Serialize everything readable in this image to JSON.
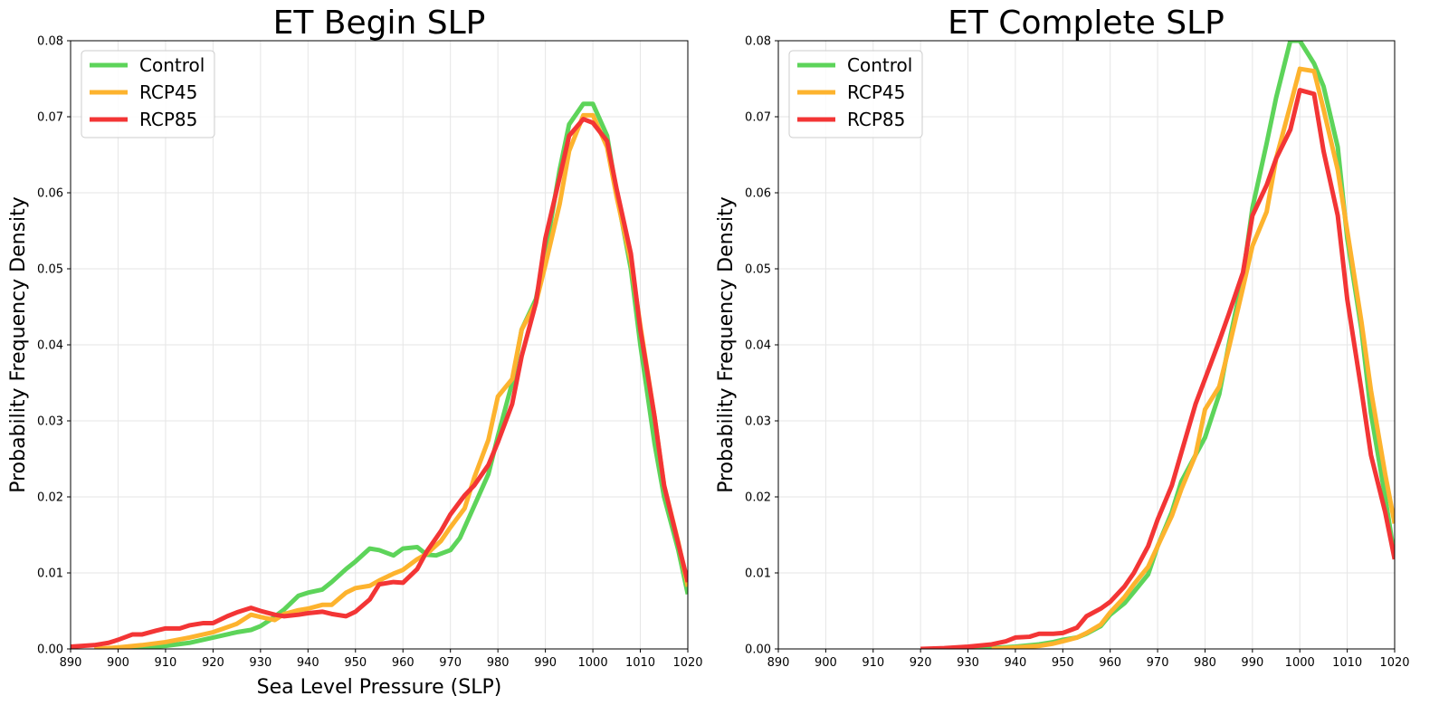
{
  "chart_data": [
    {
      "type": "line",
      "title": "ET Begin SLP",
      "xlabel": "Sea Level Pressure (SLP)",
      "ylabel": "Probability Frequency Density",
      "xlim": [
        890,
        1020
      ],
      "ylim": [
        0,
        0.08
      ],
      "xticks": [
        "890",
        "900",
        "910",
        "920",
        "930",
        "940",
        "950",
        "960",
        "970",
        "980",
        "990",
        "1000",
        "1010",
        "1020"
      ],
      "yticks": [
        "0.00",
        "0.01",
        "0.02",
        "0.03",
        "0.04",
        "0.05",
        "0.06",
        "0.07",
        "0.08"
      ],
      "grid": true,
      "legend_position": "top-left",
      "series": [
        {
          "name": "Control",
          "color": "#5dd45a",
          "x": [
            900,
            905,
            910,
            915,
            920,
            925,
            928,
            930,
            932,
            935,
            938,
            940,
            943,
            945,
            948,
            950,
            953,
            955,
            958,
            960,
            963,
            965,
            967,
            970,
            972,
            975,
            978,
            980,
            983,
            985,
            988,
            990,
            993,
            995,
            998,
            1000,
            1003,
            1005,
            1008,
            1010,
            1013,
            1015,
            1018,
            1020
          ],
          "y": [
            0,
            0.0002,
            0.0004,
            0.0008,
            0.0015,
            0.0022,
            0.0025,
            0.003,
            0.0038,
            0.0052,
            0.007,
            0.0074,
            0.0078,
            0.0088,
            0.0105,
            0.0115,
            0.0132,
            0.013,
            0.0123,
            0.0132,
            0.0134,
            0.0124,
            0.0123,
            0.013,
            0.0146,
            0.0188,
            0.023,
            0.028,
            0.035,
            0.042,
            0.046,
            0.052,
            0.063,
            0.069,
            0.0717,
            0.0717,
            0.0675,
            0.06,
            0.05,
            0.04,
            0.027,
            0.02,
            0.013,
            0.0072
          ]
        },
        {
          "name": "RCP45",
          "color": "#fdb32e",
          "x": [
            895,
            900,
            905,
            910,
            915,
            920,
            925,
            928,
            930,
            933,
            935,
            938,
            940,
            943,
            945,
            948,
            950,
            953,
            955,
            958,
            960,
            963,
            965,
            968,
            970,
            973,
            975,
            978,
            980,
            983,
            985,
            988,
            990,
            993,
            995,
            998,
            1000,
            1003,
            1005,
            1008,
            1010,
            1013,
            1015,
            1018,
            1020
          ],
          "y": [
            0,
            0.0002,
            0.0005,
            0.0009,
            0.0015,
            0.0022,
            0.0033,
            0.0045,
            0.0042,
            0.0038,
            0.0046,
            0.0051,
            0.0053,
            0.0058,
            0.0058,
            0.0074,
            0.008,
            0.0083,
            0.009,
            0.0099,
            0.0104,
            0.0118,
            0.0125,
            0.0142,
            0.016,
            0.0185,
            0.0225,
            0.0275,
            0.0332,
            0.0355,
            0.042,
            0.0455,
            0.0505,
            0.0585,
            0.0655,
            0.0702,
            0.0702,
            0.066,
            0.0595,
            0.051,
            0.0425,
            0.0305,
            0.0215,
            0.014,
            0.0082
          ]
        },
        {
          "name": "RCP85",
          "color": "#f33535",
          "x": [
            890,
            895,
            898,
            900,
            903,
            905,
            908,
            910,
            913,
            915,
            918,
            920,
            923,
            925,
            928,
            930,
            933,
            935,
            938,
            940,
            943,
            945,
            948,
            950,
            953,
            955,
            958,
            960,
            963,
            965,
            968,
            970,
            973,
            975,
            978,
            980,
            983,
            985,
            988,
            990,
            993,
            995,
            998,
            1000,
            1003,
            1005,
            1008,
            1010,
            1013,
            1015,
            1018,
            1020
          ],
          "y": [
            0.0003,
            0.0005,
            0.0008,
            0.0012,
            0.0019,
            0.0019,
            0.0024,
            0.0027,
            0.0027,
            0.0031,
            0.0034,
            0.0034,
            0.0043,
            0.0048,
            0.0054,
            0.005,
            0.0045,
            0.0043,
            0.0045,
            0.0047,
            0.0049,
            0.0046,
            0.0043,
            0.0049,
            0.0065,
            0.0085,
            0.0088,
            0.0087,
            0.0105,
            0.0128,
            0.0155,
            0.0177,
            0.0202,
            0.0215,
            0.0242,
            0.0272,
            0.0322,
            0.0385,
            0.0455,
            0.054,
            0.062,
            0.0675,
            0.0697,
            0.0692,
            0.0668,
            0.0605,
            0.052,
            0.042,
            0.0305,
            0.0215,
            0.0138,
            0.0088
          ]
        }
      ]
    },
    {
      "type": "line",
      "title": "ET Complete SLP",
      "xlabel": "",
      "ylabel": "Probability Frequency Density",
      "xlim": [
        890,
        1020
      ],
      "ylim": [
        0,
        0.08
      ],
      "xticks": [
        "890",
        "900",
        "910",
        "920",
        "930",
        "940",
        "950",
        "960",
        "970",
        "980",
        "990",
        "1000",
        "1010",
        "1020"
      ],
      "yticks": [
        "0.00",
        "0.01",
        "0.02",
        "0.03",
        "0.04",
        "0.05",
        "0.06",
        "0.07",
        "0.08"
      ],
      "grid": true,
      "legend_position": "top-left",
      "series": [
        {
          "name": "Control",
          "color": "#5dd45a",
          "x": [
            930,
            935,
            940,
            945,
            948,
            950,
            953,
            955,
            958,
            960,
            963,
            965,
            968,
            970,
            973,
            975,
            978,
            980,
            983,
            985,
            988,
            990,
            993,
            995,
            998,
            1000,
            1003,
            1005,
            1008,
            1010,
            1013,
            1015,
            1018,
            1020
          ],
          "y": [
            0,
            0.0001,
            0.0003,
            0.0006,
            0.0009,
            0.0012,
            0.0015,
            0.002,
            0.003,
            0.0045,
            0.006,
            0.0075,
            0.0098,
            0.0135,
            0.018,
            0.022,
            0.0255,
            0.0278,
            0.0335,
            0.04,
            0.049,
            0.058,
            0.0665,
            0.0725,
            0.08,
            0.08,
            0.077,
            0.074,
            0.066,
            0.054,
            0.042,
            0.031,
            0.02,
            0.012
          ]
        },
        {
          "name": "RCP45",
          "color": "#fdb32e",
          "x": [
            935,
            940,
            945,
            948,
            950,
            953,
            955,
            958,
            960,
            963,
            965,
            968,
            970,
            973,
            975,
            978,
            980,
            983,
            985,
            988,
            990,
            993,
            995,
            998,
            1000,
            1003,
            1005,
            1008,
            1010,
            1013,
            1015,
            1018,
            1020
          ],
          "y": [
            0,
            0.0002,
            0.0004,
            0.0007,
            0.001,
            0.0015,
            0.0021,
            0.0032,
            0.0048,
            0.0068,
            0.0085,
            0.0108,
            0.0135,
            0.0175,
            0.021,
            0.0255,
            0.0315,
            0.0345,
            0.0395,
            0.0475,
            0.053,
            0.0575,
            0.0645,
            0.0715,
            0.0763,
            0.076,
            0.071,
            0.063,
            0.055,
            0.043,
            0.034,
            0.023,
            0.0165
          ]
        },
        {
          "name": "RCP85",
          "color": "#f33535",
          "x": [
            920,
            925,
            930,
            935,
            938,
            940,
            943,
            945,
            948,
            950,
            953,
            955,
            958,
            960,
            963,
            965,
            968,
            970,
            973,
            975,
            978,
            980,
            983,
            985,
            988,
            990,
            993,
            995,
            998,
            1000,
            1003,
            1005,
            1008,
            1010,
            1013,
            1015,
            1018,
            1020
          ],
          "y": [
            0,
            0.0001,
            0.0003,
            0.0006,
            0.001,
            0.0015,
            0.0016,
            0.002,
            0.002,
            0.0021,
            0.0028,
            0.0043,
            0.0053,
            0.0062,
            0.0082,
            0.01,
            0.0135,
            0.017,
            0.0215,
            0.0258,
            0.0322,
            0.0355,
            0.0405,
            0.044,
            0.0495,
            0.057,
            0.061,
            0.0645,
            0.0683,
            0.0735,
            0.073,
            0.0655,
            0.057,
            0.046,
            0.034,
            0.0255,
            0.018,
            0.0118
          ]
        }
      ]
    }
  ]
}
